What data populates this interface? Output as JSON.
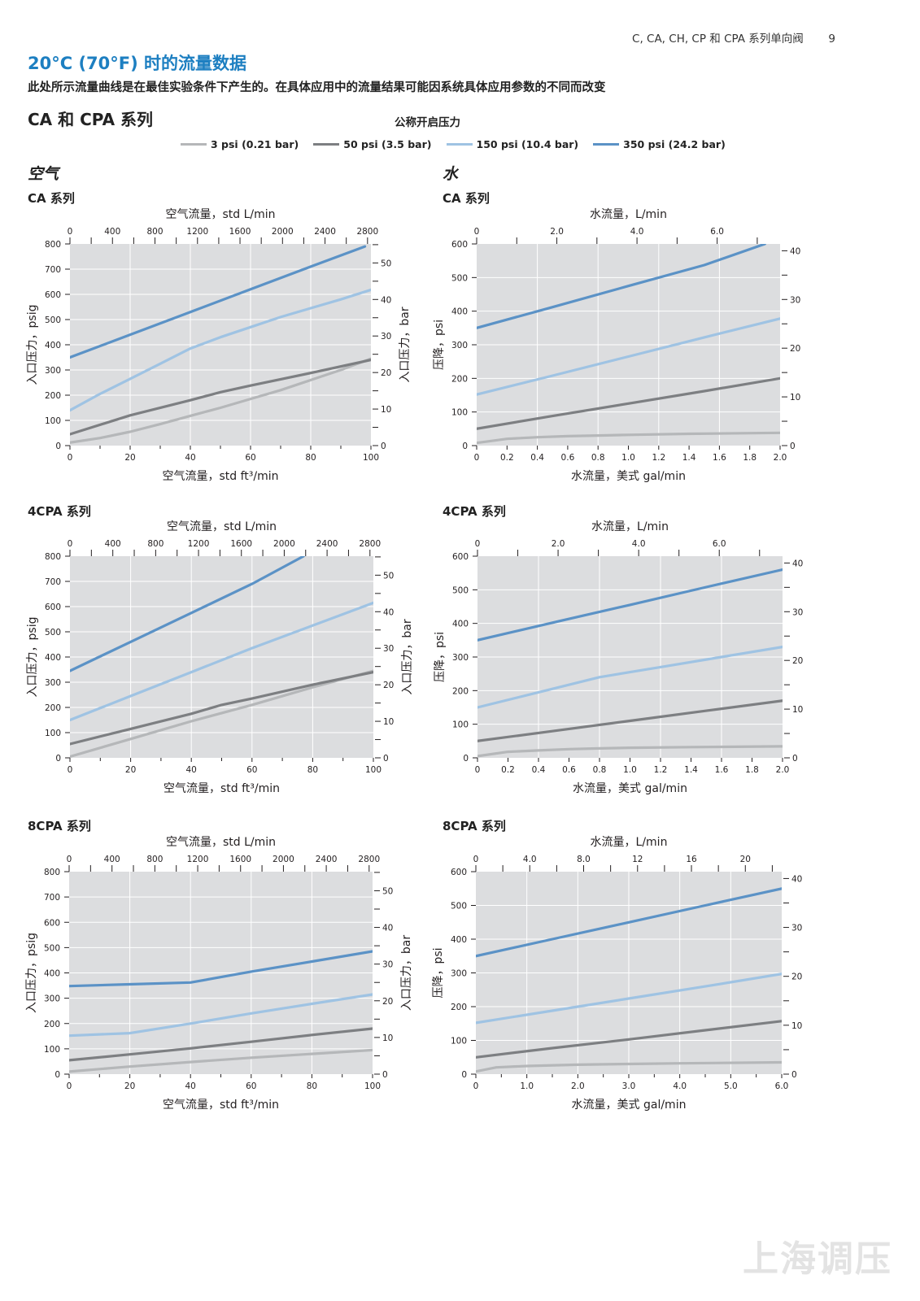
{
  "header": {
    "running_title": "C, CA, CH, CP 和  CPA 系列单向阀",
    "page_number": "9"
  },
  "title": "20°C (70°F) 时的流量数据",
  "subtitle": "此处所示流量曲线是在最佳实验条件下产生的。在具体应用中的流量结果可能因系统具体应用参数的不同而改变",
  "section_heading": "CA 和 CPA 系列",
  "legend": {
    "title": "公称开启压力",
    "items": [
      {
        "label": "3 psi (0.21 bar)",
        "color": "#b5b7b9"
      },
      {
        "label": "50 psi (3.5 bar)",
        "color": "#7d7f82"
      },
      {
        "label": "150 psi (10.4 bar)",
        "color": "#9fc3e3"
      },
      {
        "label": "350 psi (24.2 bar)",
        "color": "#5b92c6"
      }
    ]
  },
  "columns": {
    "air": "空气",
    "water": "水"
  },
  "colors": {
    "plot_bg": "#dcdddf",
    "grid": "#ffffff",
    "title_blue": "#1d7fc1"
  },
  "watermark": "上海调压",
  "chart_data": [
    {
      "type": "line",
      "title": "CA 系列",
      "xlabel": "空气流量，std ft³/min",
      "x2label": "空气流量，std L/min",
      "ylabel": "入口压力，psig",
      "y2label": "入口压力，bar",
      "xlim": [
        0,
        100
      ],
      "ylim": [
        0,
        800
      ],
      "x2lim": [
        0,
        2832
      ],
      "y2lim": [
        0,
        55.2
      ],
      "xticks": [
        "0",
        "20",
        "40",
        "60",
        "80",
        "100"
      ],
      "x2ticks": [
        "0",
        "400",
        "800",
        "1200",
        "1600",
        "2000",
        "2400",
        "2800"
      ],
      "yticks": [
        "0",
        "100",
        "200",
        "300",
        "400",
        "500",
        "600",
        "700",
        "800"
      ],
      "y2ticks": [
        "0",
        "10",
        "20",
        "30",
        "40",
        "50"
      ],
      "grid": true,
      "series": [
        {
          "name": "3 psi (0.21 bar)",
          "x": [
            0,
            10,
            20,
            30,
            40,
            50,
            60,
            70,
            80,
            90,
            100
          ],
          "y": [
            12,
            30,
            55,
            85,
            118,
            150,
            185,
            220,
            260,
            300,
            345
          ]
        },
        {
          "name": "50 psi (3.5 bar)",
          "x": [
            0,
            20,
            40,
            50,
            60,
            80,
            100
          ],
          "y": [
            45,
            120,
            180,
            212,
            238,
            288,
            340
          ]
        },
        {
          "name": "150 psi (10.4 bar)",
          "x": [
            0,
            10,
            20,
            30,
            40,
            50,
            60,
            70,
            80,
            90,
            100
          ],
          "y": [
            140,
            205,
            265,
            325,
            385,
            430,
            470,
            510,
            545,
            580,
            618
          ]
        },
        {
          "name": "350 psi (24.2 bar)",
          "x": [
            0,
            20,
            40,
            60,
            80,
            98
          ],
          "y": [
            350,
            440,
            530,
            620,
            710,
            790
          ]
        }
      ]
    },
    {
      "type": "line",
      "title": "CA 系列",
      "xlabel": "水流量，美式 gal/min",
      "x2label": "水流量，L/min",
      "ylabel": "压降，psi",
      "y2label": "",
      "xlim": [
        0,
        2.0
      ],
      "ylim": [
        0,
        600
      ],
      "x2lim": [
        0,
        7.57
      ],
      "y2lim": [
        0,
        41.4
      ],
      "xticks": [
        "0",
        "0.2",
        "0.4",
        "0.6",
        "0.8",
        "1.0",
        "1.2",
        "1.4",
        "1.6",
        "1.8",
        "2.0"
      ],
      "x2ticks": [
        "0",
        "2.0",
        "4.0",
        "6.0"
      ],
      "yticks": [
        "0",
        "100",
        "200",
        "300",
        "400",
        "500",
        "600"
      ],
      "y2ticks": [
        "0",
        "10",
        "20",
        "30",
        "40"
      ],
      "grid": true,
      "series": [
        {
          "name": "3 psi (0.21 bar)",
          "x": [
            0,
            0.2,
            0.4,
            0.6,
            0.8,
            1.0,
            1.4,
            2.0
          ],
          "y": [
            8,
            20,
            25,
            28,
            30,
            32,
            35,
            38
          ]
        },
        {
          "name": "50 psi (3.5 bar)",
          "x": [
            0,
            0.5,
            1.0,
            1.5,
            2.0
          ],
          "y": [
            50,
            88,
            125,
            162,
            200
          ]
        },
        {
          "name": "150 psi (10.4 bar)",
          "x": [
            0,
            0.5,
            1.0,
            1.5,
            2.0
          ],
          "y": [
            152,
            208,
            265,
            322,
            378
          ]
        },
        {
          "name": "350 psi (24.2 bar)",
          "x": [
            0,
            0.5,
            1.0,
            1.5,
            1.9
          ],
          "y": [
            350,
            412,
            475,
            537,
            600
          ]
        }
      ]
    },
    {
      "type": "line",
      "title": "4CPA 系列",
      "xlabel": "空气流量，std ft³/min",
      "x2label": "空气流量，std L/min",
      "ylabel": "入口压力，psig",
      "y2label": "入口压力，bar",
      "xlim": [
        0,
        100
      ],
      "ylim": [
        0,
        800
      ],
      "x2lim": [
        0,
        2832
      ],
      "y2lim": [
        0,
        55.2
      ],
      "xticks": [
        "0",
        "20",
        "40",
        "60",
        "80",
        "100"
      ],
      "x2ticks": [
        "0",
        "400",
        "800",
        "1200",
        "1600",
        "2000",
        "2400",
        "2800"
      ],
      "yticks": [
        "0",
        "100",
        "200",
        "300",
        "400",
        "500",
        "600",
        "700",
        "800"
      ],
      "y2ticks": [
        "0",
        "10",
        "20",
        "30",
        "40",
        "50"
      ],
      "grid": true,
      "series": [
        {
          "name": "3 psi (0.21 bar)",
          "x": [
            0,
            20,
            40,
            60,
            80,
            100
          ],
          "y": [
            5,
            75,
            145,
            210,
            280,
            345
          ]
        },
        {
          "name": "50 psi (3.5 bar)",
          "x": [
            0,
            20,
            40,
            50,
            60,
            80,
            100
          ],
          "y": [
            55,
            115,
            175,
            210,
            235,
            290,
            340
          ]
        },
        {
          "name": "150 psi (10.4 bar)",
          "x": [
            0,
            20,
            40,
            60,
            80,
            100
          ],
          "y": [
            150,
            245,
            340,
            435,
            525,
            615
          ]
        },
        {
          "name": "350 psi (24.2 bar)",
          "x": [
            0,
            20,
            40,
            60,
            77
          ],
          "y": [
            345,
            460,
            575,
            690,
            800
          ]
        }
      ]
    },
    {
      "type": "line",
      "title": "4CPA 系列",
      "xlabel": "水流量，美式 gal/min",
      "x2label": "水流量，L/min",
      "ylabel": "压降，psi",
      "y2label": "",
      "xlim": [
        0,
        2.0
      ],
      "ylim": [
        0,
        600
      ],
      "x2lim": [
        0,
        7.57
      ],
      "y2lim": [
        0,
        41.4
      ],
      "xticks": [
        "0",
        "0.2",
        "0.4",
        "0.6",
        "0.8",
        "1.0",
        "1.2",
        "1.4",
        "1.6",
        "1.8",
        "2.0"
      ],
      "x2ticks": [
        "0",
        "2.0",
        "4.0",
        "6.0"
      ],
      "yticks": [
        "0",
        "100",
        "200",
        "300",
        "400",
        "500",
        "600"
      ],
      "y2ticks": [
        "0",
        "10",
        "20",
        "30",
        "40"
      ],
      "grid": true,
      "series": [
        {
          "name": "3 psi (0.21 bar)",
          "x": [
            0,
            0.2,
            0.4,
            0.6,
            0.8,
            1.0,
            1.4,
            2.0
          ],
          "y": [
            5,
            18,
            22,
            26,
            28,
            30,
            32,
            34
          ]
        },
        {
          "name": "50 psi (3.5 bar)",
          "x": [
            0,
            0.5,
            1.0,
            1.5,
            2.0
          ],
          "y": [
            50,
            80,
            110,
            140,
            170
          ]
        },
        {
          "name": "150 psi (10.4 bar)",
          "x": [
            0,
            0.4,
            0.8,
            1.2,
            1.6,
            2.0
          ],
          "y": [
            150,
            195,
            240,
            270,
            300,
            330
          ]
        },
        {
          "name": "350 psi (24.2 bar)",
          "x": [
            0,
            0.5,
            1.0,
            1.5,
            2.0
          ],
          "y": [
            350,
            403,
            455,
            508,
            560
          ]
        }
      ]
    },
    {
      "type": "line",
      "title": "8CPA 系列",
      "xlabel": "空气流量，std ft³/min",
      "x2label": "空气流量，std L/min",
      "ylabel": "入口压力，psig",
      "y2label": "入口压力，bar",
      "xlim": [
        0,
        100
      ],
      "ylim": [
        0,
        800
      ],
      "x2lim": [
        0,
        2832
      ],
      "y2lim": [
        0,
        55.2
      ],
      "xticks": [
        "0",
        "20",
        "40",
        "60",
        "80",
        "100"
      ],
      "x2ticks": [
        "0",
        "400",
        "800",
        "1200",
        "1600",
        "2000",
        "2400",
        "2800"
      ],
      "yticks": [
        "0",
        "100",
        "200",
        "300",
        "400",
        "500",
        "600",
        "700",
        "800"
      ],
      "y2ticks": [
        "0",
        "10",
        "20",
        "30",
        "40",
        "50"
      ],
      "grid": true,
      "series": [
        {
          "name": "3 psi (0.21 bar)",
          "x": [
            0,
            20,
            40,
            60,
            80,
            100
          ],
          "y": [
            10,
            30,
            48,
            65,
            80,
            95
          ]
        },
        {
          "name": "50 psi (3.5 bar)",
          "x": [
            0,
            20,
            40,
            60,
            80,
            100
          ],
          "y": [
            55,
            78,
            102,
            128,
            155,
            180
          ]
        },
        {
          "name": "150 psi (10.4 bar)",
          "x": [
            0,
            20,
            40,
            60,
            80,
            100
          ],
          "y": [
            152,
            162,
            200,
            240,
            278,
            315
          ]
        },
        {
          "name": "350 psi (24.2 bar)",
          "x": [
            0,
            20,
            40,
            60,
            80,
            100
          ],
          "y": [
            348,
            355,
            362,
            405,
            445,
            485
          ]
        }
      ]
    },
    {
      "type": "line",
      "title": "8CPA 系列",
      "xlabel": "水流量，美式 gal/min",
      "x2label": "水流量，L/min",
      "ylabel": "压降，psi",
      "y2label": "",
      "xlim": [
        0,
        6.0
      ],
      "ylim": [
        0,
        600
      ],
      "x2lim": [
        0,
        22.7
      ],
      "y2lim": [
        0,
        41.4
      ],
      "xticks": [
        "0",
        "1.0",
        "2.0",
        "3.0",
        "4.0",
        "5.0",
        "6.0"
      ],
      "x2ticks": [
        "0",
        "4.0",
        "8.0",
        "12",
        "16",
        "20"
      ],
      "yticks": [
        "0",
        "100",
        "200",
        "300",
        "400",
        "500",
        "600"
      ],
      "y2ticks": [
        "0",
        "10",
        "20",
        "30",
        "40"
      ],
      "grid": true,
      "series": [
        {
          "name": "3 psi (0.21 bar)",
          "x": [
            0,
            0.4,
            1.0,
            2.0,
            3.0,
            4.0,
            6.0
          ],
          "y": [
            8,
            20,
            24,
            28,
            30,
            32,
            35
          ]
        },
        {
          "name": "50 psi (3.5 bar)",
          "x": [
            0,
            1.5,
            3.0,
            4.5,
            6.0
          ],
          "y": [
            50,
            77,
            103,
            130,
            157
          ]
        },
        {
          "name": "150 psi (10.4 bar)",
          "x": [
            0,
            1.5,
            3.0,
            4.5,
            6.0
          ],
          "y": [
            152,
            188,
            224,
            260,
            297
          ]
        },
        {
          "name": "350 psi (24.2 bar)",
          "x": [
            0,
            1.5,
            3.0,
            4.5,
            6.0
          ],
          "y": [
            350,
            400,
            450,
            500,
            550
          ]
        }
      ]
    }
  ]
}
